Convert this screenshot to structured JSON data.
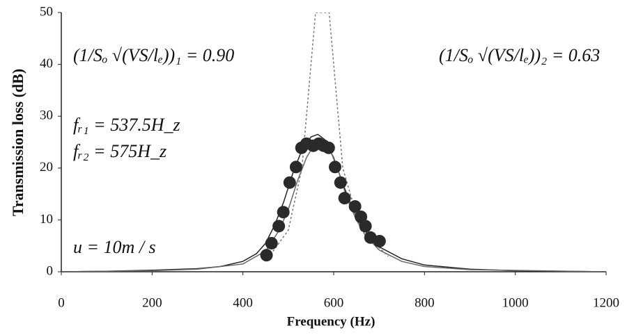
{
  "chart_data": {
    "type": "scatter",
    "xlabel": "Frequency (Hz)",
    "ylabel": "Transmission loss (dB)",
    "xlim": [
      0,
      1200
    ],
    "ylim": [
      0,
      50
    ],
    "xticks": [
      0,
      200,
      400,
      600,
      800,
      1000,
      1200
    ],
    "yticks": [
      0,
      10,
      20,
      30,
      40,
      50
    ],
    "grid": false,
    "annotations": [
      "(1/Sₒ √(VS/lₑ))₁ = 0.90",
      "(1/Sₒ √(VS/lₑ))₂ = 0.63",
      "fᵣ₁ = 537.5H_z",
      "fᵣ₂ = 575H_z",
      "u = 10m / s"
    ],
    "series": [
      {
        "mode": "line",
        "dash": false,
        "color": "#222",
        "x": [
          0,
          100,
          200,
          300,
          350,
          400,
          430,
          450,
          470,
          490,
          510,
          530,
          550,
          565,
          580,
          600,
          620,
          640,
          660,
          680,
          700,
          750,
          800,
          900,
          1000,
          1200
        ],
        "values": [
          0,
          0.1,
          0.3,
          0.6,
          1.0,
          2,
          3.5,
          5.5,
          9,
          13.5,
          19,
          23.5,
          26,
          26.5,
          25.5,
          22,
          17,
          12.5,
          9,
          6.5,
          4.8,
          2.5,
          1.3,
          0.5,
          0.2,
          0
        ]
      },
      {
        "mode": "line",
        "dash": false,
        "color": "#666",
        "x": [
          0,
          200,
          300,
          400,
          450,
          480,
          500,
          520,
          540,
          560,
          575,
          590,
          610,
          630,
          650,
          670,
          700,
          750,
          800,
          900,
          1200
        ],
        "values": [
          0,
          0.2,
          0.5,
          1.5,
          4,
          8,
          12,
          17.5,
          22,
          25,
          25.5,
          24,
          19.5,
          14,
          10,
          7,
          4.2,
          2,
          1,
          0.4,
          0
        ]
      },
      {
        "mode": "line",
        "dash": true,
        "color": "#777",
        "x": [
          450,
          500,
          530,
          550,
          560,
          575,
          590,
          600,
          620,
          660,
          720
        ],
        "values": [
          2,
          8,
          20,
          40,
          50,
          50,
          50,
          40,
          20,
          8,
          3
        ]
      },
      {
        "mode": "markers",
        "color": "#2a2a2a",
        "x": [
          452,
          463,
          479,
          489,
          503,
          517,
          529,
          540,
          555,
          567,
          578,
          589,
          603,
          615,
          624,
          647,
          660,
          670,
          681,
          701
        ],
        "values": [
          3.2,
          5.5,
          8.8,
          11.5,
          17.2,
          20.2,
          23.9,
          24.7,
          24.3,
          24.7,
          24.3,
          23.9,
          20.2,
          17.2,
          14.2,
          12.6,
          10.6,
          8.8,
          6.6,
          5.9
        ]
      }
    ]
  }
}
